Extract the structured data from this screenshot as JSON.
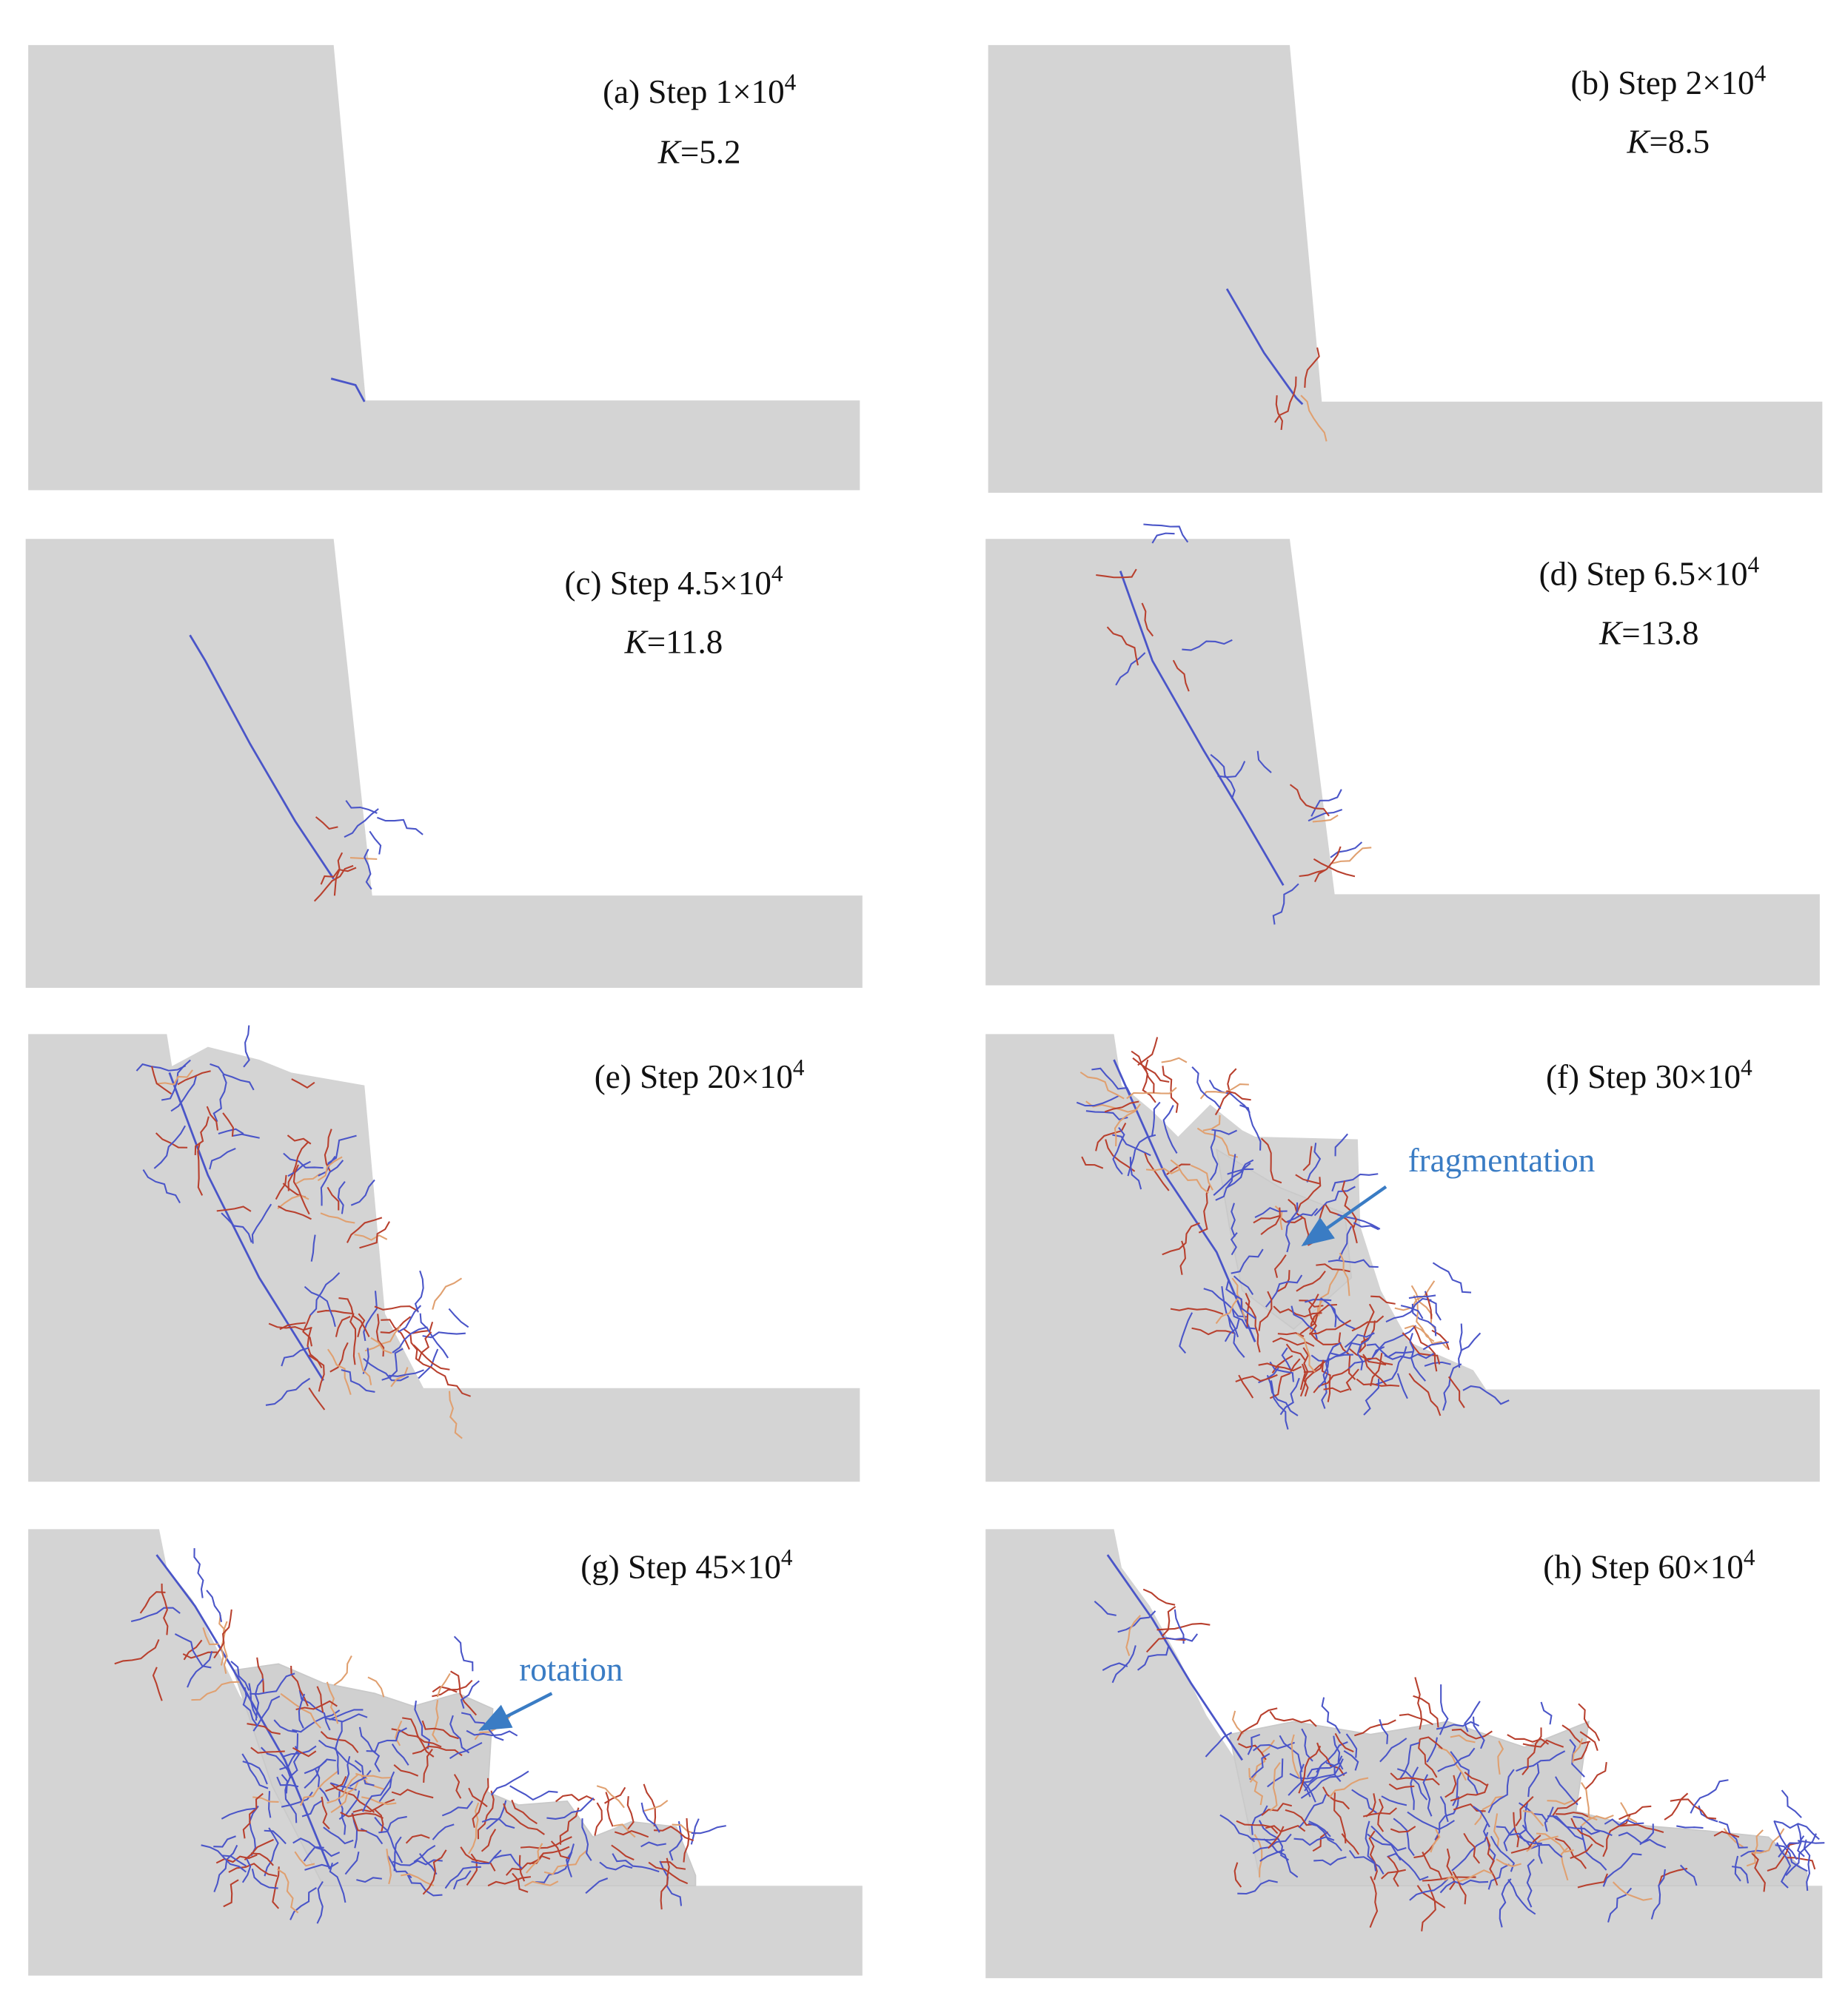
{
  "panels": [
    {
      "label": "(a) Step 1×10",
      "exponent": "4",
      "k_var": "K",
      "k_rest": "=5.2"
    },
    {
      "label": "(b) Step 2×10",
      "exponent": "4",
      "k_var": "K",
      "k_rest": "=8.5"
    },
    {
      "label": "(c) Step 4.5×10",
      "exponent": "4",
      "k_var": "K",
      "k_rest": "=11.8"
    },
    {
      "label": "(d) Step 6.5×10",
      "exponent": "4",
      "k_var": "K",
      "k_rest": "=13.8"
    },
    {
      "label": "(e) Step 20×10",
      "exponent": "4"
    },
    {
      "label": "(f) Step 30×10",
      "exponent": "4",
      "annotation": "fragmentation"
    },
    {
      "label": "(g) Step 45×10",
      "exponent": "4",
      "annotation": "rotation"
    },
    {
      "label": "(h) Step 60×10",
      "exponent": "4"
    }
  ]
}
